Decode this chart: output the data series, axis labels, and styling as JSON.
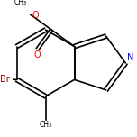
{
  "bg_color": "#ffffff",
  "bond_color": "#000000",
  "atom_colors": {
    "N": "#0000ff",
    "O": "#ff0000",
    "Br": "#8B0000",
    "C": "#000000"
  },
  "bond_width": 1.2,
  "font_size": 7,
  "figsize": [
    1.52,
    1.52
  ],
  "dpi": 100
}
